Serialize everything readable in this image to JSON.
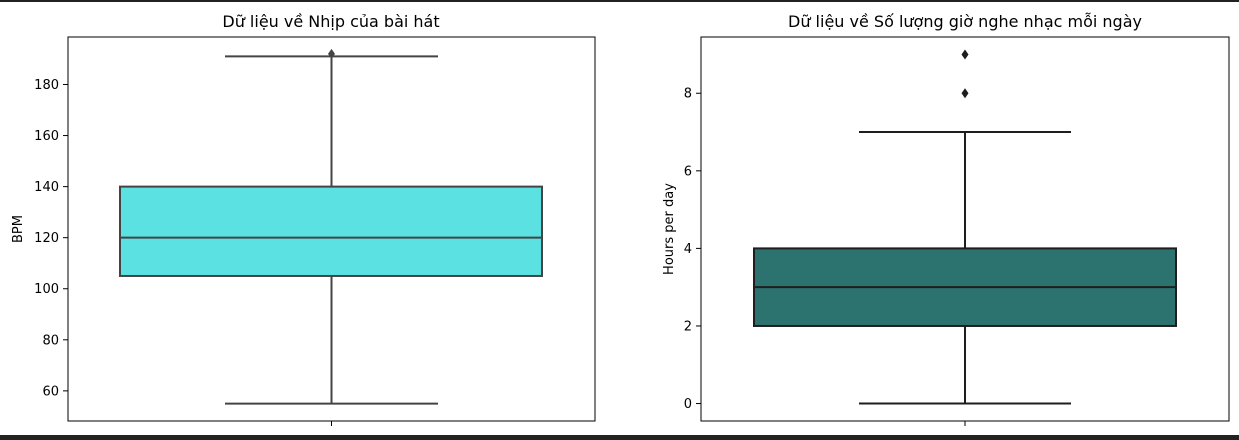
{
  "chart_data": [
    {
      "type": "box",
      "title": "Dữ liệu về Nhịp của bài hát",
      "xlabel": "",
      "ylabel": "BPM",
      "ylim": [
        48.2,
        198.6
      ],
      "yticks": [
        60,
        80,
        100,
        120,
        140,
        160,
        180
      ],
      "box": {
        "whisker_low": 55,
        "q1": 105,
        "median": 120,
        "q3": 140,
        "whisker_high": 191
      },
      "outliers": [
        192
      ],
      "colors": {
        "box_fill": "#5ce1e2",
        "line": "#444444"
      }
    },
    {
      "type": "box",
      "title": "Dữ liệu về Số lượng giờ nghe nhạc mỗi ngày",
      "xlabel": "",
      "ylabel": "Hours per day",
      "ylim": [
        -0.45,
        9.45
      ],
      "yticks": [
        0,
        2,
        4,
        6,
        8
      ],
      "box": {
        "whisker_low": 0,
        "q1": 2,
        "median": 3,
        "q3": 4,
        "whisker_high": 7
      },
      "outliers": [
        8,
        9
      ],
      "colors": {
        "box_fill": "#2c7370",
        "line": "#1e1e1e"
      }
    }
  ]
}
